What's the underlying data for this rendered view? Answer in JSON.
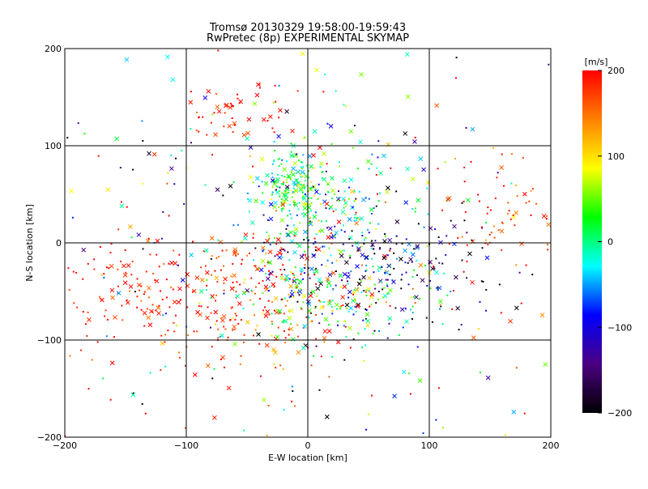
{
  "chart_data": {
    "type": "scatter",
    "title": "Tromsø 20130329 19:58:00-19:59:43",
    "subtitle": "RwPretec (8p) EXPERIMENTAL SKYMAP",
    "xlabel": "E-W location [km]",
    "ylabel": "N-S location [km]",
    "xlim": [
      -200,
      200
    ],
    "ylim": [
      -200,
      200
    ],
    "x_ticks": [
      "-200",
      "-100",
      "0",
      "100",
      "200"
    ],
    "y_ticks": [
      "-200",
      "-100",
      "0",
      "100",
      "200"
    ],
    "grid": true,
    "markers": [
      "dot",
      "x"
    ],
    "colorbar": {
      "label": "[m/s]",
      "range": [
        -200,
        200
      ],
      "ticks": [
        "-200",
        "-100",
        "0",
        "100",
        "200"
      ],
      "colors": [
        "#000000",
        "#4b0082",
        "#0000ff",
        "#00ffff",
        "#00ff00",
        "#ffff00",
        "#ff8000",
        "#ff0000"
      ]
    },
    "clusters": [
      {
        "name": "",
        "center": [
          -50,
          -55
        ],
        "spread": [
          55,
          38
        ],
        "count": 260,
        "velocity": 185,
        "velocity_spread": 35
      },
      {
        "name": "",
        "center": [
          -140,
          -50
        ],
        "spread": [
          35,
          35
        ],
        "count": 90,
        "velocity": 190,
        "velocity_spread": 25
      },
      {
        "name": "",
        "center": [
          -60,
          135
        ],
        "spread": [
          22,
          14
        ],
        "count": 50,
        "velocity": 190,
        "velocity_spread": 20
      },
      {
        "name": "",
        "center": [
          -10,
          55
        ],
        "spread": [
          15,
          20
        ],
        "count": 170,
        "velocity": 20,
        "velocity_spread": 45
      },
      {
        "name": "",
        "center": [
          15,
          20
        ],
        "spread": [
          40,
          45
        ],
        "count": 220,
        "velocity": -20,
        "velocity_spread": 60
      },
      {
        "name": "",
        "center": [
          55,
          -25
        ],
        "spread": [
          45,
          30
        ],
        "count": 200,
        "velocity": -130,
        "velocity_spread": 65
      },
      {
        "name": "",
        "center": [
          20,
          -55
        ],
        "spread": [
          40,
          25
        ],
        "count": 130,
        "velocity": 40,
        "velocity_spread": 50
      },
      {
        "name": "",
        "center": [
          165,
          25
        ],
        "spread": [
          25,
          35
        ],
        "count": 60,
        "velocity": 180,
        "velocity_spread": 30
      },
      {
        "name": "",
        "center": [
          0,
          0
        ],
        "spread": [
          140,
          130
        ],
        "count": 380,
        "velocity": 60,
        "velocity_spread": 160
      }
    ]
  }
}
